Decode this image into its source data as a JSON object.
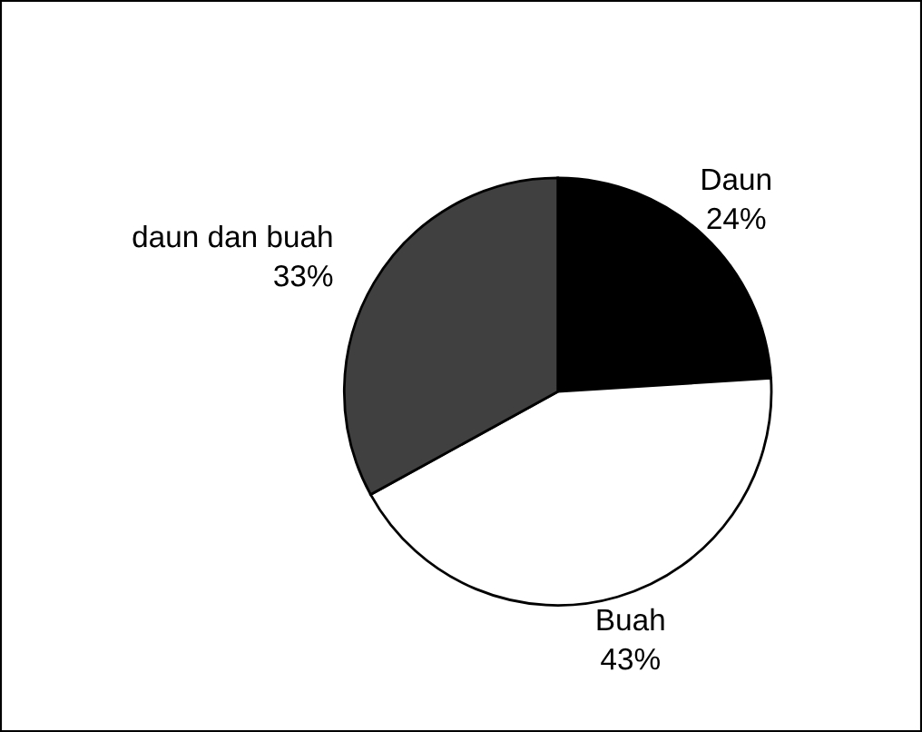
{
  "chart_data": {
    "type": "pie",
    "categories": [
      "Daun",
      "Buah",
      "daun dan buah"
    ],
    "values": [
      24,
      43,
      33
    ],
    "value_labels": [
      "24%",
      "43%",
      "33%"
    ],
    "colors": [
      "#000000",
      "#ffffff",
      "#404040"
    ]
  }
}
